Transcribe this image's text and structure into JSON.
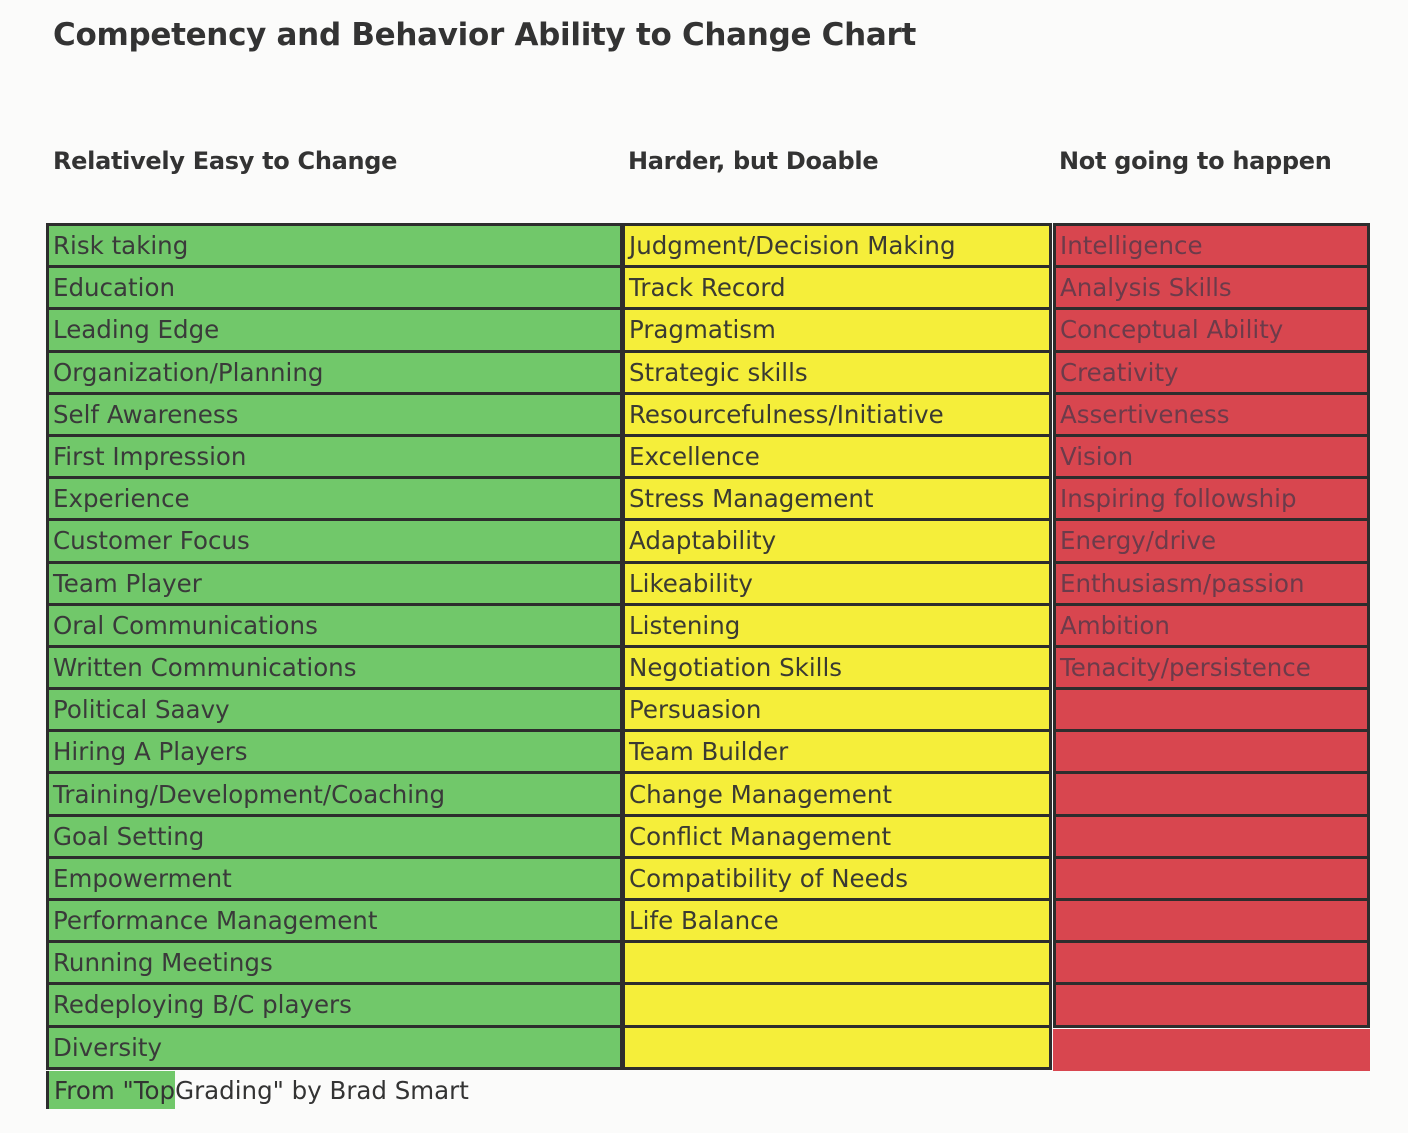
{
  "title": "Competency and Behavior Ability to Change Chart",
  "columns": [
    {
      "heading": "Relatively Easy to Change",
      "color": "#71c86a",
      "items": [
        "Risk taking",
        "Education",
        "Leading Edge",
        "Organization/Planning",
        "Self Awareness",
        "First Impression",
        "Experience",
        "Customer Focus",
        "Team Player",
        "Oral Communications",
        "Written Communications",
        "Political Saavy",
        "Hiring A Players",
        "Training/Development/Coaching",
        "Goal Setting",
        "Empowerment",
        "Performance Management",
        "Running Meetings",
        "Redeploying B/C players",
        "Diversity"
      ]
    },
    {
      "heading": "Harder, but Doable",
      "color": "#f5ee3a",
      "items": [
        "Judgment/Decision Making",
        "Track Record",
        "Pragmatism",
        "Strategic skills",
        "Resourcefulness/Initiative",
        "Excellence",
        "Stress Management",
        "Adaptability",
        "Likeability",
        "Listening",
        "Negotiation Skills",
        "Persuasion",
        "Team Builder",
        "Change Management",
        "Conflict Management",
        "Compatibility of Needs",
        "Life Balance",
        "",
        "",
        ""
      ]
    },
    {
      "heading": "Not going to happen",
      "color": "#d8464f",
      "items": [
        "Intelligence",
        "Analysis Skills",
        "Conceptual Ability",
        "Creativity",
        "Assertiveness",
        "Vision",
        "Inspiring followship",
        "Energy/drive",
        "Enthusiasm/passion",
        "Ambition",
        "Tenacity/persistence",
        "",
        "",
        "",
        "",
        "",
        "",
        "",
        ""
      ]
    }
  ],
  "source": {
    "highlighted": "From \"Top ",
    "rest": "Grading\" by Brad Smart"
  }
}
